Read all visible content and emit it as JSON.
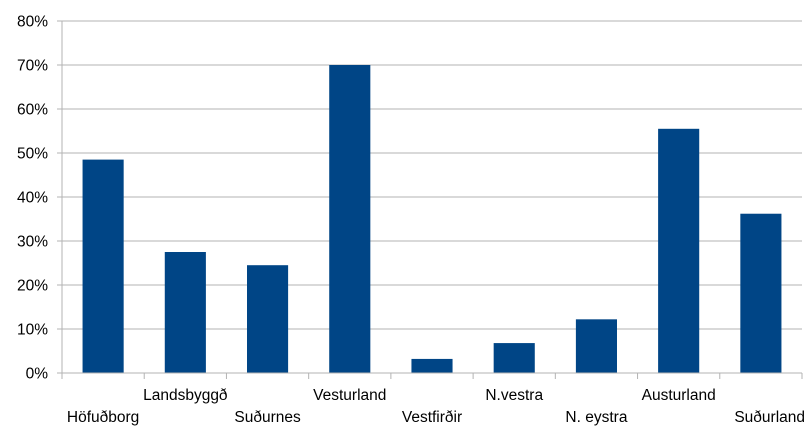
{
  "chart_data": {
    "type": "bar",
    "title": "",
    "xlabel": "",
    "ylabel": "",
    "categories": [
      "Höfuðborg",
      "Landsbyggð",
      "Suðurnes",
      "Vesturland",
      "Vestfirðir",
      "N.vestra",
      "N. eystra",
      "Austurland",
      "Suðurland"
    ],
    "series": [
      {
        "values": [
          48.5,
          27.5,
          24.5,
          70.0,
          3.2,
          6.8,
          12.2,
          55.5,
          36.2
        ]
      }
    ],
    "ylim": [
      0,
      80
    ],
    "yticks": [
      "0%",
      "10%",
      "20%",
      "30%",
      "40%",
      "50%",
      "60%",
      "70%",
      "80%"
    ],
    "grid": true,
    "legend": "none",
    "colors": {
      "bar": "#004586",
      "grid": "#b3b3b3",
      "axis": "#b3b3b3"
    }
  }
}
